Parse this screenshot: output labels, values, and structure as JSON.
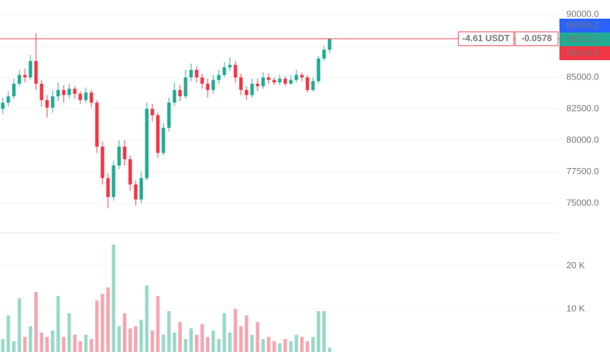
{
  "chart_data": {
    "type": "candlestick",
    "up_color": "#22ab94",
    "down_color": "#f23645",
    "volume_up_color": "#9ad8c9",
    "volume_down_color": "#f5a6b0",
    "open": [
      82500,
      83000,
      83500,
      84500,
      85200,
      85000,
      86300,
      84500,
      83200,
      82600,
      83500,
      84000,
      83600,
      84100,
      83700,
      83200,
      83800,
      83000,
      79500,
      77000,
      75500,
      78000,
      79500,
      78500,
      76500,
      75300,
      77000,
      82500,
      82000,
      79000,
      81000,
      83000,
      84000,
      83500,
      85000,
      85600,
      85000,
      84500,
      84000,
      84800,
      85200,
      85800,
      86000,
      85000,
      84000,
      83600,
      84500,
      84300,
      85000,
      84800,
      84600,
      84900,
      84500,
      84800,
      85200,
      85000,
      84000,
      84700,
      86500,
      87200
    ],
    "high": [
      83400,
      83900,
      84900,
      85600,
      85700,
      86800,
      88500,
      84800,
      83600,
      84000,
      84600,
      84400,
      84500,
      84300,
      83900,
      84200,
      84000,
      83200,
      79900,
      77400,
      78400,
      80000,
      80000,
      78800,
      76800,
      77500,
      83000,
      82900,
      82200,
      81400,
      83400,
      84600,
      84400,
      85600,
      86100,
      85900,
      85300,
      84900,
      85200,
      85600,
      86200,
      86600,
      86300,
      85300,
      84300,
      84900,
      84900,
      85400,
      85300,
      85000,
      85200,
      85100,
      85200,
      85600,
      85400,
      85200,
      85000,
      86700,
      87500,
      88094.3
    ],
    "low": [
      82100,
      82700,
      83300,
      84300,
      84600,
      84800,
      84000,
      82700,
      81800,
      82200,
      83100,
      83000,
      83300,
      83300,
      82900,
      83000,
      82600,
      79000,
      76500,
      74600,
      75200,
      77700,
      78000,
      76000,
      74800,
      75000,
      76800,
      81500,
      78600,
      78800,
      80700,
      82700,
      83100,
      83300,
      84700,
      84600,
      84100,
      83400,
      83700,
      84500,
      85000,
      85500,
      84600,
      83600,
      83200,
      83400,
      83900,
      84100,
      84500,
      84400,
      84400,
      84300,
      84400,
      84600,
      84700,
      83800,
      83900,
      84500,
      86300,
      86900
    ],
    "close": [
      83000,
      83500,
      84500,
      85200,
      85000,
      86300,
      84500,
      83200,
      82600,
      83500,
      84000,
      83600,
      84100,
      83700,
      83200,
      83800,
      83000,
      79500,
      77000,
      75500,
      78000,
      79500,
      78500,
      76500,
      75300,
      77000,
      82500,
      82000,
      79000,
      81000,
      83000,
      84000,
      83500,
      85000,
      85600,
      85000,
      84500,
      84000,
      84800,
      85200,
      85800,
      86000,
      85000,
      84000,
      83600,
      84500,
      84300,
      85000,
      84800,
      84600,
      84900,
      84500,
      84800,
      85200,
      85000,
      84000,
      84700,
      86500,
      87200,
      88072.3
    ],
    "volume": [
      3000,
      8500,
      2500,
      12500,
      3500,
      6000,
      14000,
      4500,
      3500,
      5000,
      13000,
      3500,
      9000,
      4000,
      2500,
      4000,
      3000,
      12000,
      13500,
      15000,
      25000,
      6000,
      9000,
      5500,
      6000,
      7500,
      15500,
      5000,
      13000,
      4000,
      9500,
      4500,
      7000,
      3000,
      5500,
      4000,
      6500,
      3500,
      5000,
      3000,
      9000,
      4500,
      10000,
      6000,
      8500,
      4000,
      7000,
      3000,
      3500,
      2500,
      2000,
      3000,
      2500,
      4000,
      3500,
      2500,
      3500,
      9500,
      9500,
      1000
    ],
    "ylim": [
      72640,
      91150
    ],
    "yticks": [
      {
        "value": 75000,
        "label": "75000.0"
      },
      {
        "value": 77500,
        "label": "77500.0"
      },
      {
        "value": 80000,
        "label": "80000.0"
      },
      {
        "value": 82500,
        "label": "82500.0"
      },
      {
        "value": 85000,
        "label": "85000.0"
      },
      {
        "value": 87500,
        "label": "87500.0"
      },
      {
        "value": 90000,
        "label": "90000.0"
      }
    ],
    "volume_ylim": [
      0,
      27700
    ],
    "volume_yticks": [
      {
        "value": 10000,
        "label": "10 K"
      },
      {
        "value": 20000,
        "label": "20 K"
      }
    ],
    "grid": true,
    "price_line": {
      "value": 88072.3,
      "color": "#f23645",
      "change_label": "-4.61 USDT",
      "change_pct_label": "-0.0578"
    },
    "badges": [
      {
        "value": 88094.3,
        "color": "#2962ff"
      },
      {
        "value": 88072.3,
        "color": "#22ab94"
      },
      {
        "value": 88014.6,
        "color": "#f23645"
      }
    ]
  }
}
